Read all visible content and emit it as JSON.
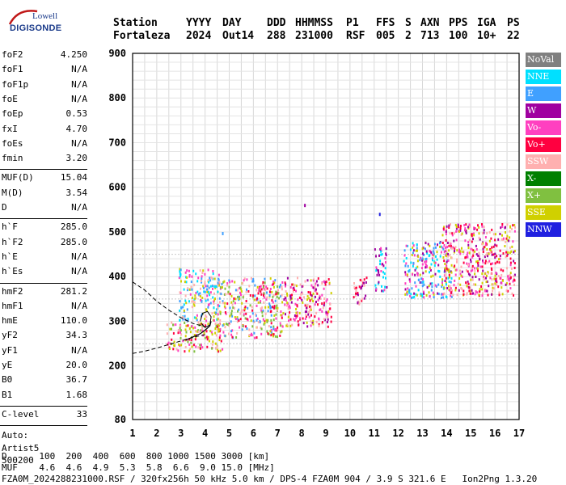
{
  "logo": {
    "line1": "Lowell",
    "line2": "DIGISONDE"
  },
  "header": {
    "labels": [
      "Station",
      "YYYY",
      "DAY",
      "DDD",
      "HHMMSS",
      "P1",
      "FFS",
      "S",
      "AXN",
      "PPS",
      "IGA",
      "PS"
    ],
    "values": [
      "Fortaleza",
      "2024",
      "Out14",
      "288",
      "231000",
      "RSF",
      "005",
      "2",
      "713",
      "100",
      "10+",
      "22"
    ]
  },
  "params": [
    {
      "group": 1,
      "name": "foF2",
      "value": "4.250"
    },
    {
      "group": 1,
      "name": "foF1",
      "value": "N/A"
    },
    {
      "group": 1,
      "name": "foF1p",
      "value": "N/A"
    },
    {
      "group": 1,
      "name": "foE",
      "value": "N/A"
    },
    {
      "group": 1,
      "name": "foEp",
      "value": "0.53"
    },
    {
      "group": 1,
      "name": "fxI",
      "value": "4.70"
    },
    {
      "group": 1,
      "name": "foEs",
      "value": "N/A"
    },
    {
      "group": 1,
      "name": "fmin",
      "value": "3.20"
    },
    {
      "group": 2,
      "name": "MUF(D)",
      "value": "15.04"
    },
    {
      "group": 2,
      "name": "M(D)",
      "value": "3.54"
    },
    {
      "group": 2,
      "name": "D",
      "value": "N/A"
    },
    {
      "group": 3,
      "name": "h`F",
      "value": "285.0"
    },
    {
      "group": 3,
      "name": "h`F2",
      "value": "285.0"
    },
    {
      "group": 3,
      "name": "h`E",
      "value": "N/A"
    },
    {
      "group": 3,
      "name": "h`Es",
      "value": "N/A"
    },
    {
      "group": 4,
      "name": "hmF2",
      "value": "281.2"
    },
    {
      "group": 4,
      "name": "hmF1",
      "value": "N/A"
    },
    {
      "group": 4,
      "name": "hmE",
      "value": "110.0"
    },
    {
      "group": 4,
      "name": "yF2",
      "value": "34.3"
    },
    {
      "group": 4,
      "name": "yF1",
      "value": "N/A"
    },
    {
      "group": 4,
      "name": "yE",
      "value": "20.0"
    },
    {
      "group": 4,
      "name": "B0",
      "value": "36.7"
    },
    {
      "group": 4,
      "name": "B1",
      "value": "1.68"
    },
    {
      "group": 5,
      "name": "C-level",
      "value": "33"
    }
  ],
  "extra": [
    "Auto:",
    "Artist5",
    "500200"
  ],
  "legend": [
    {
      "label": "NoVal",
      "color": "#808080"
    },
    {
      "label": "NNE",
      "color": "#00e0ff"
    },
    {
      "label": "E",
      "color": "#40a0ff"
    },
    {
      "label": "W",
      "color": "#a000a0"
    },
    {
      "label": "Vo-",
      "color": "#ff40c0"
    },
    {
      "label": "Vo+",
      "color": "#ff0040"
    },
    {
      "label": "SSW",
      "color": "#ffb0b0"
    },
    {
      "label": "X-",
      "color": "#008000"
    },
    {
      "label": "X+",
      "color": "#80c040"
    },
    {
      "label": "SSE",
      "color": "#d0d000"
    },
    {
      "label": "NNW",
      "color": "#2020e0"
    }
  ],
  "footer": {
    "d_row": "D      100  200  400  600  800 1000 1500 3000 [km]",
    "muf_row": "MUF    4.6  4.6  4.9  5.3  5.8  6.6  9.0 15.0 [MHz]",
    "file_row": "FZA0M_2024288231000.RSF / 320fx256h 50 kHz 5.0 km / DPS-4 FZA0M 904 / 3.9 S 321.6 E   Ion2Png 1.3.20"
  },
  "chart_data": {
    "type": "scatter",
    "xlim": [
      1,
      17
    ],
    "ylim": [
      80,
      900
    ],
    "x_ticks": [
      1,
      2,
      3,
      4,
      5,
      6,
      7,
      8,
      9,
      10,
      11,
      12,
      13,
      14,
      15,
      16,
      17
    ],
    "y_ticks": [
      80,
      200,
      300,
      400,
      500,
      600,
      700,
      800,
      900
    ],
    "grid": true,
    "legend_position": "right",
    "echo_regions": [
      {
        "f": [
          2.4,
          4.7
        ],
        "h": [
          235,
          300
        ],
        "colors": [
          "#ff0040",
          "#ffb0b0",
          "#ff40c0",
          "#d0d000",
          "#80c040"
        ]
      },
      {
        "f": [
          2.9,
          4.6
        ],
        "h": [
          300,
          420
        ],
        "colors": [
          "#ffb0b0",
          "#d0d000",
          "#40a0ff",
          "#00e0ff",
          "#ff40c0"
        ]
      },
      {
        "f": [
          4.5,
          7.2
        ],
        "h": [
          265,
          400
        ],
        "colors": [
          "#ff0040",
          "#ffb0b0",
          "#ff40c0",
          "#d0d000",
          "#80c040",
          "#40a0ff"
        ]
      },
      {
        "f": [
          7.2,
          9.2
        ],
        "h": [
          290,
          400
        ],
        "colors": [
          "#ff0040",
          "#ffb0b0",
          "#d0d000",
          "#a000a0",
          "#ff40c0"
        ]
      },
      {
        "f": [
          10.1,
          10.7
        ],
        "h": [
          340,
          400
        ],
        "colors": [
          "#ff0040",
          "#ffb0b0",
          "#a000a0"
        ]
      },
      {
        "f": [
          11.0,
          11.5
        ],
        "h": [
          370,
          470
        ],
        "colors": [
          "#ff40c0",
          "#a000a0",
          "#00e0ff"
        ]
      },
      {
        "f": [
          12.2,
          14.2
        ],
        "h": [
          355,
          480
        ],
        "colors": [
          "#00e0ff",
          "#ff40c0",
          "#a000a0",
          "#d0d000",
          "#40a0ff"
        ]
      },
      {
        "f": [
          13.8,
          16.8
        ],
        "h": [
          360,
          520
        ],
        "colors": [
          "#a000a0",
          "#ff40c0",
          "#d0d000",
          "#ff0040",
          "#ffb0b0"
        ]
      }
    ],
    "isolated_points": [
      {
        "f": 8.1,
        "h": 563,
        "color": "#a000a0"
      },
      {
        "f": 11.2,
        "h": 543,
        "color": "#2020e0"
      },
      {
        "f": 4.7,
        "h": 500,
        "color": "#40a0ff"
      },
      {
        "f": 16.6,
        "h": 515,
        "color": "#d0d000"
      }
    ],
    "profile_dashed_upper": {
      "f": [
        1,
        1.5,
        2.0,
        2.5,
        3.0,
        3.5,
        4.0
      ],
      "h": [
        388,
        370,
        345,
        325,
        308,
        295,
        288
      ]
    },
    "profile_dashed_lower": {
      "f": [
        1,
        1.5,
        2.0,
        2.5,
        3.0,
        3.5,
        4.0
      ],
      "h": [
        228,
        233,
        240,
        248,
        256,
        264,
        270
      ]
    },
    "trace_solid": {
      "f": [
        3.2,
        3.5,
        3.8,
        4.0,
        4.2,
        4.25
      ],
      "h": [
        258,
        265,
        272,
        280,
        290,
        300
      ]
    },
    "trace_loop": {
      "f": [
        3.8,
        3.9,
        4.1,
        4.25,
        4.2,
        4.0,
        3.85
      ],
      "h": [
        300,
        318,
        322,
        310,
        292,
        286,
        295
      ]
    }
  }
}
